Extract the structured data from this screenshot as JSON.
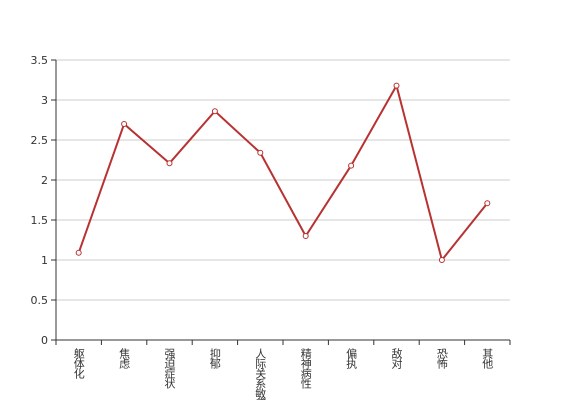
{
  "chart_data": {
    "type": "line",
    "categories": [
      "躯体化",
      "焦虑",
      "强迫症状",
      "抑郁",
      "人际关系敏感",
      "精神病性",
      "偏执",
      "敌对",
      "恐怖",
      "其他"
    ],
    "series": [
      {
        "color": "#b83232",
        "values": [
          1.09,
          2.7,
          2.21,
          2.86,
          2.34,
          1.3,
          2.18,
          3.18,
          1.0,
          1.71
        ]
      }
    ],
    "ylim": [
      0,
      3.5
    ],
    "yticks": [
      0,
      0.5,
      1,
      1.5,
      2,
      2.5,
      3,
      3.5
    ],
    "grid": true
  }
}
